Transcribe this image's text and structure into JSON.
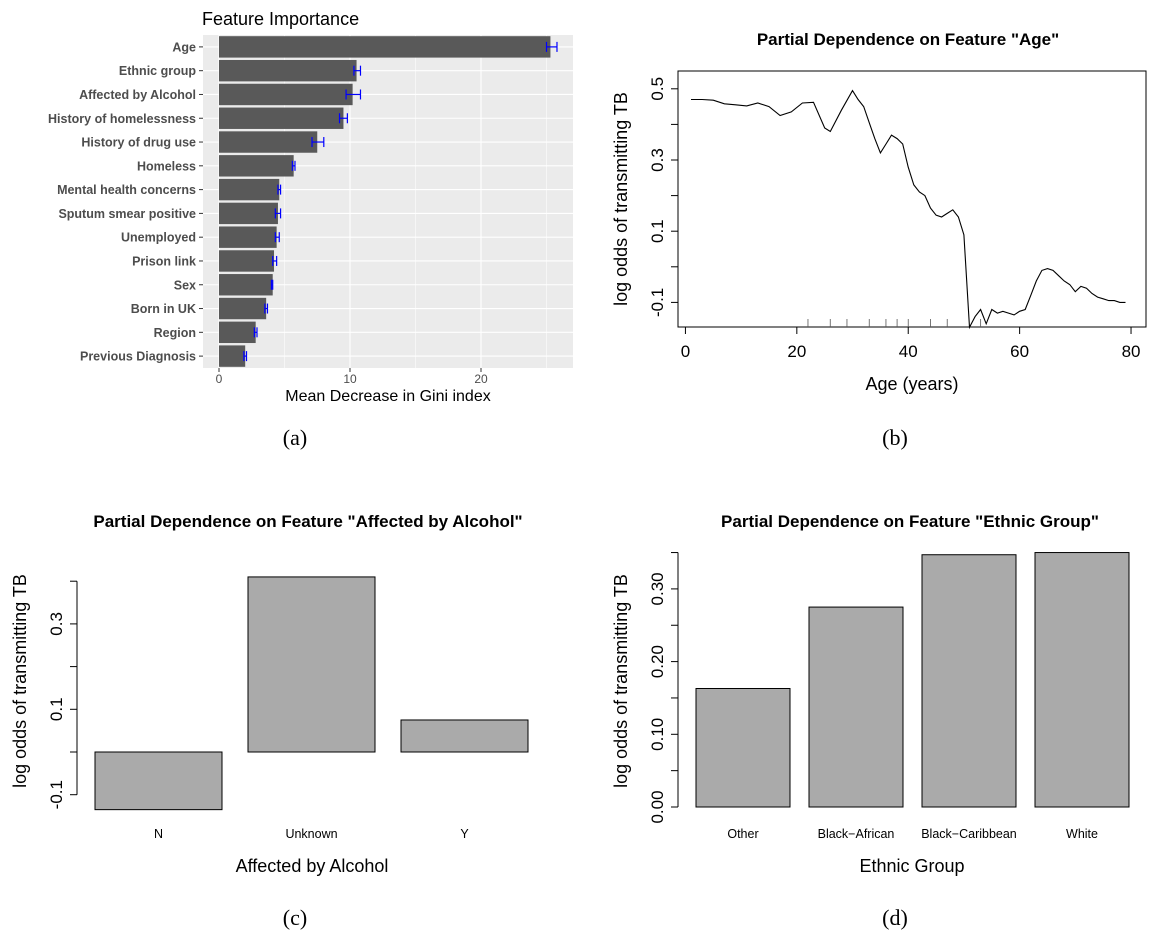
{
  "chart_data": [
    {
      "type": "bar",
      "orientation": "horizontal",
      "title": "Feature Importance",
      "xlabel": "Mean Decrease in Gini index",
      "ylabel": "",
      "categories": [
        "Age",
        "Ethnic group",
        "Affected by Alcohol",
        "History of homelessness",
        "History of drug use",
        "Homeless",
        "Mental health concerns",
        "Sputum smear positive",
        "Unemployed",
        "Prison link",
        "Sex",
        "Born in UK",
        "Region",
        "Previous Diagnosis"
      ],
      "values": [
        25.3,
        10.5,
        10.2,
        9.5,
        7.5,
        5.7,
        4.6,
        4.5,
        4.4,
        4.2,
        4.1,
        3.6,
        2.8,
        2.0
      ],
      "error_low": [
        25.0,
        10.3,
        9.7,
        9.2,
        7.1,
        5.6,
        4.5,
        4.3,
        4.3,
        4.1,
        4.0,
        3.5,
        2.7,
        1.9
      ],
      "error_high": [
        25.8,
        10.8,
        10.8,
        9.8,
        8.0,
        5.8,
        4.7,
        4.7,
        4.6,
        4.4,
        4.1,
        3.7,
        2.9,
        2.1
      ],
      "xlim": [
        0,
        27
      ],
      "xticks": [
        "0",
        "10",
        "20"
      ],
      "bar_color": "#595959",
      "error_color": "#0000ff",
      "panel_color": "#ebebeb",
      "grid": true,
      "caption": "(a)"
    },
    {
      "type": "line",
      "title": "Partial Dependence on Feature \"Age\"",
      "xlabel": "Age (years)",
      "ylabel": "log odds of transmitting TB",
      "xlim": [
        0,
        80
      ],
      "ylim": [
        -0.17,
        0.52
      ],
      "xticks": [
        "0",
        "20",
        "40",
        "60",
        "80"
      ],
      "yticks": [
        "-0.1",
        "0.1",
        "0.3",
        "0.5"
      ],
      "x": [
        1,
        3,
        5,
        7,
        9,
        11,
        13,
        15,
        17,
        19,
        21,
        23,
        25,
        26,
        28,
        30,
        31,
        32,
        33,
        34,
        35,
        36,
        37,
        38,
        39,
        40,
        41,
        42,
        43,
        44,
        45,
        46,
        47,
        48,
        49,
        50,
        51,
        52,
        53,
        54,
        55,
        56,
        57,
        58,
        59,
        60,
        61,
        62,
        63,
        64,
        65,
        66,
        67,
        68,
        69,
        70,
        71,
        72,
        73,
        74,
        75,
        76,
        77,
        78,
        79
      ],
      "y": [
        0.47,
        0.47,
        0.468,
        0.458,
        0.455,
        0.452,
        0.46,
        0.45,
        0.425,
        0.435,
        0.46,
        0.462,
        0.39,
        0.38,
        0.44,
        0.495,
        0.47,
        0.45,
        0.405,
        0.36,
        0.32,
        0.345,
        0.37,
        0.36,
        0.345,
        0.28,
        0.23,
        0.21,
        0.2,
        0.165,
        0.145,
        0.14,
        0.15,
        0.16,
        0.14,
        0.09,
        -0.17,
        -0.14,
        -0.12,
        -0.16,
        -0.12,
        -0.13,
        -0.125,
        -0.13,
        -0.135,
        -0.125,
        -0.12,
        -0.08,
        -0.04,
        -0.01,
        -0.005,
        -0.01,
        -0.025,
        -0.04,
        -0.05,
        -0.07,
        -0.055,
        -0.06,
        -0.075,
        -0.085,
        -0.09,
        -0.095,
        -0.095,
        -0.1,
        -0.1
      ],
      "rug": [
        22,
        26,
        29,
        33,
        36,
        38,
        40,
        44,
        47,
        53
      ],
      "caption": "(b)"
    },
    {
      "type": "bar",
      "title": "Partial Dependence on Feature \"Affected by Alcohol\"",
      "xlabel": "Affected by Alcohol",
      "ylabel": "log odds of transmitting TB",
      "categories": [
        "N",
        "Unknown",
        "Y"
      ],
      "values": [
        -0.135,
        0.41,
        0.075
      ],
      "baseline": 0,
      "ylim": [
        -0.2,
        0.45
      ],
      "yticks": [
        "-0.1",
        "0.1",
        "0.3"
      ],
      "bar_color": "#aaaaaa",
      "caption": "(c)"
    },
    {
      "type": "bar",
      "title": "Partial Dependence on Feature \"Ethnic Group\"",
      "xlabel": "Ethnic Group",
      "ylabel": "log odds of transmitting TB",
      "categories": [
        "Other",
        "Black−African",
        "Black−Caribbean",
        "White"
      ],
      "values": [
        0.163,
        0.275,
        0.347,
        0.35
      ],
      "baseline": 0,
      "ylim": [
        0,
        0.35
      ],
      "yticks": [
        "0.00",
        "0.10",
        "0.20",
        "0.30"
      ],
      "bar_color": "#aaaaaa",
      "caption": "(d)"
    }
  ]
}
